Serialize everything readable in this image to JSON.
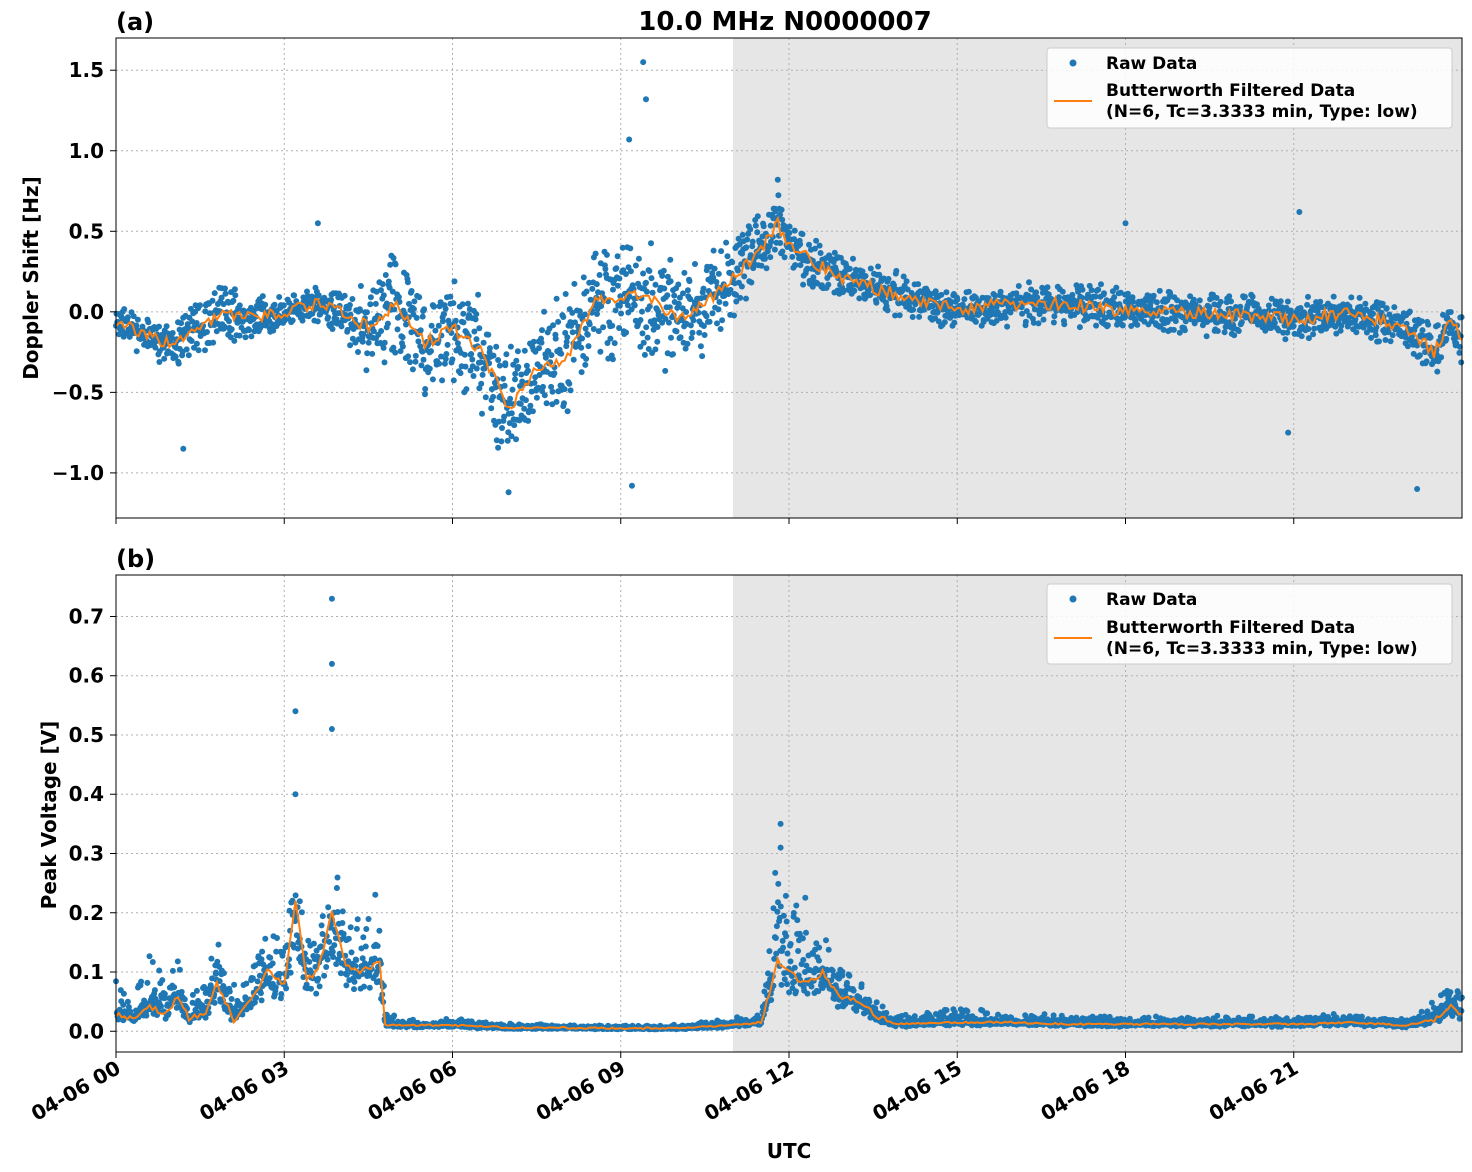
{
  "figure_title": "10.0 MHz N0000007",
  "x_axis": {
    "label": "UTC",
    "range_hours": [
      0,
      24
    ],
    "ticks": [
      {
        "hour": 0,
        "label": "04-06 00"
      },
      {
        "hour": 3,
        "label": "04-06 03"
      },
      {
        "hour": 6,
        "label": "04-06 06"
      },
      {
        "hour": 9,
        "label": "04-06 09"
      },
      {
        "hour": 12,
        "label": "04-06 12"
      },
      {
        "hour": 15,
        "label": "04-06 15"
      },
      {
        "hour": 18,
        "label": "04-06 18"
      },
      {
        "hour": 21,
        "label": "04-06 21"
      }
    ]
  },
  "shaded_region_hours": [
    11.0,
    24.0
  ],
  "colors": {
    "raw": "#1f77b4",
    "filtered": "#ff7f0e",
    "shade": "#e6e6e6",
    "grid": "#b0b0b0"
  },
  "legend": {
    "raw_label": "Raw Data",
    "filtered_label_line1": "Butterworth Filtered Data",
    "filtered_label_line2": "(N=6, Tc=3.3333 min, Type: low)"
  },
  "chart_data": [
    {
      "panel_label": "(a)",
      "type": "scatter",
      "ylabel": "Doppler Shift [Hz]",
      "ylim": [
        -1.28,
        1.7
      ],
      "yticks": [
        {
          "value": 1.5,
          "label": "1.5"
        },
        {
          "value": 1.0,
          "label": "1.0"
        },
        {
          "value": 0.5,
          "label": "0.5"
        },
        {
          "value": 0.0,
          "label": "0.0"
        },
        {
          "value": -0.5,
          "label": "−0.5"
        },
        {
          "value": -1.0,
          "label": "−1.0"
        }
      ],
      "series": [
        {
          "name": "Butterworth Filtered Data",
          "x_hours": [
            0,
            0.5,
            1,
            1.5,
            2,
            2.5,
            3,
            3.5,
            4,
            4.5,
            5,
            5.5,
            6,
            6.5,
            7,
            7.5,
            8,
            8.5,
            9,
            9.5,
            10,
            10.5,
            11,
            11.5,
            11.8,
            12,
            12.5,
            13,
            13.5,
            14,
            14.5,
            15,
            16,
            17,
            18,
            19,
            20,
            21,
            22,
            23,
            23.5,
            23.8,
            24
          ],
          "values": [
            -0.05,
            -0.15,
            -0.2,
            -0.1,
            0.0,
            -0.05,
            0.0,
            0.05,
            0.0,
            -0.1,
            0.05,
            -0.2,
            -0.1,
            -0.25,
            -0.6,
            -0.35,
            -0.3,
            0.05,
            0.1,
            0.1,
            -0.05,
            0.05,
            0.2,
            0.4,
            0.55,
            0.4,
            0.3,
            0.2,
            0.15,
            0.1,
            0.05,
            0.02,
            0.05,
            0.05,
            0.0,
            0.0,
            -0.02,
            -0.05,
            0.0,
            -0.1,
            -0.25,
            -0.05,
            -0.15
          ]
        },
        {
          "name": "Raw Data",
          "envelope": {
            "x_hours": [
              0,
              0.5,
              1,
              1.5,
              2,
              2.5,
              3,
              3.5,
              4,
              4.5,
              5,
              5.5,
              6,
              6.5,
              7,
              7.5,
              8,
              8.5,
              9,
              9.5,
              10,
              10.5,
              11,
              11.5,
              11.8,
              12,
              12.5,
              13,
              13.5,
              14,
              14.5,
              15,
              16,
              17,
              18,
              19,
              20,
              21,
              22,
              23,
              23.5,
              23.8,
              24
            ],
            "spread": [
              0.15,
              0.12,
              0.15,
              0.2,
              0.25,
              0.15,
              0.1,
              0.12,
              0.15,
              0.3,
              0.4,
              0.35,
              0.35,
              0.45,
              0.4,
              0.35,
              0.45,
              0.4,
              0.45,
              0.4,
              0.4,
              0.35,
              0.3,
              0.25,
              0.2,
              0.2,
              0.18,
              0.15,
              0.15,
              0.15,
              0.15,
              0.12,
              0.15,
              0.15,
              0.15,
              0.15,
              0.15,
              0.15,
              0.15,
              0.15,
              0.2,
              0.12,
              0.2
            ]
          },
          "outliers": [
            {
              "x_hours": 9.4,
              "value": 1.55
            },
            {
              "x_hours": 9.45,
              "value": 1.32
            },
            {
              "x_hours": 9.15,
              "value": 1.07
            },
            {
              "x_hours": 11.8,
              "value": 0.82
            },
            {
              "x_hours": 3.6,
              "value": 0.55
            },
            {
              "x_hours": 1.2,
              "value": -0.85
            },
            {
              "x_hours": 7.0,
              "value": -1.12
            },
            {
              "x_hours": 9.2,
              "value": -1.08
            },
            {
              "x_hours": 20.9,
              "value": -0.75
            },
            {
              "x_hours": 23.2,
              "value": -1.1
            },
            {
              "x_hours": 18.0,
              "value": 0.55
            },
            {
              "x_hours": 21.1,
              "value": 0.62
            }
          ]
        }
      ]
    },
    {
      "panel_label": "(b)",
      "type": "scatter",
      "ylabel": "Peak Voltage [V]",
      "ylim": [
        -0.035,
        0.77
      ],
      "yticks": [
        {
          "value": 0.7,
          "label": "0.7"
        },
        {
          "value": 0.6,
          "label": "0.6"
        },
        {
          "value": 0.5,
          "label": "0.5"
        },
        {
          "value": 0.4,
          "label": "0.4"
        },
        {
          "value": 0.3,
          "label": "0.3"
        },
        {
          "value": 0.2,
          "label": "0.2"
        },
        {
          "value": 0.1,
          "label": "0.1"
        },
        {
          "value": 0.0,
          "label": "0.0"
        }
      ],
      "series": [
        {
          "name": "Butterworth Filtered Data",
          "x_hours": [
            0,
            0.3,
            0.6,
            0.9,
            1.1,
            1.3,
            1.6,
            1.8,
            2.1,
            2.4,
            2.7,
            3.0,
            3.2,
            3.4,
            3.6,
            3.85,
            4.1,
            4.4,
            4.7,
            4.8,
            5.5,
            6,
            7,
            8,
            9,
            10,
            11,
            11.5,
            11.8,
            12,
            12.3,
            12.6,
            12.9,
            13.2,
            13.5,
            13.8,
            14,
            15,
            16,
            17,
            18,
            19,
            20,
            21,
            22,
            23,
            23.5,
            23.8,
            24
          ],
          "values": [
            0.03,
            0.02,
            0.04,
            0.03,
            0.06,
            0.02,
            0.03,
            0.08,
            0.02,
            0.05,
            0.1,
            0.08,
            0.22,
            0.09,
            0.1,
            0.2,
            0.11,
            0.1,
            0.12,
            0.01,
            0.01,
            0.01,
            0.006,
            0.006,
            0.005,
            0.005,
            0.01,
            0.015,
            0.12,
            0.1,
            0.08,
            0.1,
            0.06,
            0.05,
            0.03,
            0.015,
            0.012,
            0.015,
            0.015,
            0.012,
            0.012,
            0.012,
            0.012,
            0.012,
            0.015,
            0.01,
            0.02,
            0.04,
            0.03
          ]
        },
        {
          "name": "Raw Data",
          "envelope": {
            "x_hours": [
              0,
              0.3,
              0.6,
              0.9,
              1.1,
              1.3,
              1.6,
              1.8,
              2.1,
              2.4,
              2.7,
              3.0,
              3.2,
              3.4,
              3.6,
              3.85,
              4.1,
              4.4,
              4.7,
              4.8,
              5.5,
              6,
              7,
              8,
              9,
              10,
              11,
              11.5,
              11.8,
              12,
              12.3,
              12.6,
              12.9,
              13.2,
              13.5,
              13.8,
              14,
              15,
              16,
              17,
              18,
              19,
              20,
              21,
              22,
              23,
              23.5,
              23.8,
              24
            ],
            "upper": [
              0.09,
              0.06,
              0.14,
              0.08,
              0.12,
              0.06,
              0.08,
              0.17,
              0.07,
              0.12,
              0.18,
              0.15,
              0.3,
              0.16,
              0.18,
              0.3,
              0.2,
              0.2,
              0.24,
              0.03,
              0.015,
              0.02,
              0.012,
              0.012,
              0.01,
              0.01,
              0.02,
              0.03,
              0.3,
              0.24,
              0.2,
              0.18,
              0.12,
              0.09,
              0.06,
              0.03,
              0.025,
              0.04,
              0.03,
              0.025,
              0.025,
              0.025,
              0.025,
              0.025,
              0.03,
              0.02,
              0.05,
              0.09,
              0.07
            ]
          },
          "outliers": [
            {
              "x_hours": 3.85,
              "value": 0.73
            },
            {
              "x_hours": 3.85,
              "value": 0.62
            },
            {
              "x_hours": 3.85,
              "value": 0.51
            },
            {
              "x_hours": 3.2,
              "value": 0.54
            },
            {
              "x_hours": 3.2,
              "value": 0.4
            },
            {
              "x_hours": 11.85,
              "value": 0.35
            },
            {
              "x_hours": 11.85,
              "value": 0.31
            }
          ]
        }
      ]
    }
  ]
}
